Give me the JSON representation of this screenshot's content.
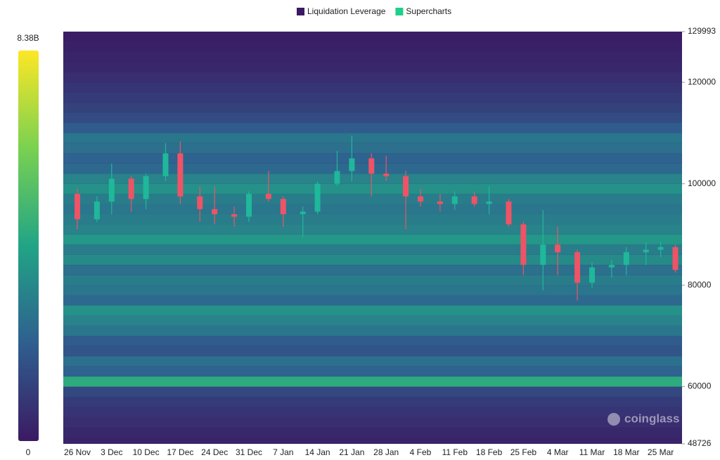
{
  "chart_data": {
    "type": "liquidation-heatmap",
    "legend": [
      {
        "name": "Liquidation Leverage",
        "color": "#3b1a63"
      },
      {
        "name": "Supercharts",
        "color": "#1fcf8c"
      }
    ],
    "watermark": "coinglass",
    "categories": [
      "26 Nov",
      "3 Dec",
      "10 Dec",
      "17 Dec",
      "24 Dec",
      "31 Dec",
      "7 Jan",
      "14 Jan",
      "21 Jan",
      "28 Jan",
      "4 Feb",
      "11 Feb",
      "18 Feb",
      "25 Feb",
      "4 Mar",
      "11 Mar",
      "18 Mar",
      "25 Mar"
    ],
    "ylim": [
      48726,
      129993
    ],
    "yticks": [
      48726,
      60000,
      80000,
      100000,
      120000,
      129993
    ],
    "colorbar": {
      "lim": [
        0,
        8.38
      ],
      "ticks": [
        0,
        {
          "value": 8.38,
          "label": "8.38B"
        }
      ],
      "colorscale": [
        "#3b1a63",
        "#2f5f8f",
        "#21a486",
        "#7ad151",
        "#fde725"
      ]
    },
    "heatmap": {
      "levels": [
        49000,
        51000,
        53000,
        55000,
        57000,
        59000,
        61000,
        63000,
        65000,
        67000,
        69000,
        71000,
        73000,
        75000,
        77000,
        79000,
        81000,
        83000,
        85000,
        87000,
        89000,
        91000,
        93000,
        95000,
        97000,
        99000,
        101000,
        103000,
        105000,
        107000,
        109000,
        111000,
        113000,
        115000,
        117000,
        119000,
        121000,
        123000,
        125000,
        127000,
        129000
      ],
      "values": [
        0.3,
        0.4,
        0.6,
        0.8,
        1.0,
        1.4,
        4.5,
        2.2,
        2.6,
        1.8,
        2.0,
        2.8,
        3.2,
        3.6,
        2.4,
        2.8,
        3.0,
        2.6,
        3.4,
        3.0,
        3.8,
        3.2,
        3.0,
        2.8,
        3.0,
        3.6,
        3.2,
        2.4,
        2.2,
        2.6,
        2.8,
        2.0,
        1.5,
        1.2,
        1.0,
        0.8,
        0.6,
        0.4,
        0.3,
        0.2,
        0.1
      ]
    },
    "candles": {
      "up_color": "#1fb89a",
      "down_color": "#ef5366",
      "x": [
        "26 Nov",
        "30 Nov",
        "3 Dec",
        "7 Dec",
        "10 Dec",
        "14 Dec",
        "17 Dec",
        "21 Dec",
        "24 Dec",
        "28 Dec",
        "31 Dec",
        "4 Jan",
        "7 Jan",
        "11 Jan",
        "14 Jan",
        "18 Jan",
        "21 Jan",
        "25 Jan",
        "28 Jan",
        "1 Feb",
        "4 Feb",
        "8 Feb",
        "11 Feb",
        "15 Feb",
        "18 Feb",
        "22 Feb",
        "25 Feb",
        "1 Mar",
        "4 Mar",
        "8 Mar",
        "11 Mar",
        "15 Mar",
        "18 Mar",
        "22 Mar",
        "25 Mar",
        "28 Mar"
      ],
      "open": [
        98000,
        93000,
        96500,
        101000,
        97000,
        101500,
        106000,
        97500,
        95000,
        94000,
        93500,
        98000,
        97000,
        94000,
        94500,
        100000,
        102500,
        105000,
        102000,
        101500,
        97500,
        96500,
        96000,
        97500,
        96000,
        96500,
        92000,
        84000,
        88000,
        86500,
        80500,
        83500,
        84000,
        86500,
        87000,
        87500
      ],
      "high": [
        99000,
        97500,
        104000,
        101500,
        102000,
        108000,
        108300,
        99500,
        99500,
        95500,
        98500,
        102500,
        97500,
        95500,
        100500,
        106500,
        109500,
        106000,
        105500,
        102500,
        99000,
        98000,
        98500,
        98500,
        99500,
        97000,
        92500,
        94800,
        91500,
        87000,
        84500,
        85000,
        87500,
        88500,
        88500,
        88000
      ],
      "low": [
        91000,
        92500,
        94000,
        94500,
        95000,
        100500,
        96000,
        92500,
        92000,
        91500,
        92500,
        96500,
        91500,
        89500,
        94000,
        99500,
        100500,
        97500,
        100500,
        91000,
        95500,
        94500,
        94800,
        95500,
        94000,
        91500,
        82000,
        79000,
        82000,
        77000,
        79500,
        81500,
        82000,
        84000,
        85500,
        82500
      ],
      "close": [
        93000,
        96500,
        101000,
        97000,
        101500,
        106000,
        97500,
        95000,
        94000,
        93500,
        98000,
        97000,
        94000,
        94500,
        100000,
        102500,
        105000,
        102000,
        101500,
        97500,
        96500,
        96000,
        97500,
        96000,
        96500,
        92000,
        84000,
        88000,
        86500,
        80500,
        83500,
        84000,
        86500,
        87000,
        87500,
        83000
      ]
    }
  }
}
